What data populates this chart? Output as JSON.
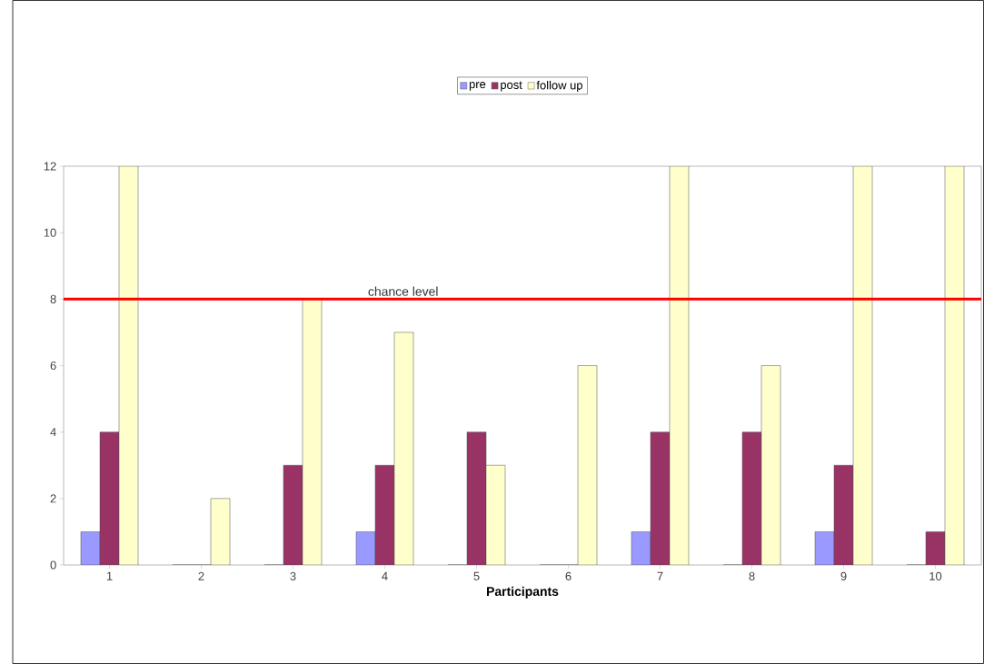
{
  "chart_data": {
    "type": "bar",
    "xlabel": "Participants",
    "categories": [
      "1",
      "2",
      "3",
      "4",
      "5",
      "6",
      "7",
      "8",
      "9",
      "10"
    ],
    "series": [
      {
        "name": "pre",
        "color": "#9999ff",
        "values": [
          1,
          0,
          0,
          1,
          0,
          0,
          1,
          0,
          1,
          0
        ]
      },
      {
        "name": "post",
        "color": "#993366",
        "values": [
          4,
          0,
          3,
          3,
          4,
          0,
          4,
          4,
          3,
          1
        ]
      },
      {
        "name": "follow up",
        "color": "#ffffcc",
        "values": [
          12,
          2,
          8,
          7,
          3,
          6,
          12,
          6,
          12,
          12
        ]
      }
    ],
    "ylim": [
      0,
      12
    ],
    "yticks": [
      0,
      2,
      4,
      6,
      8,
      10,
      12
    ],
    "legend": "top",
    "ref_lines": [
      {
        "axis": "y",
        "value": 8,
        "label": "chance level",
        "color": "#ff0000"
      }
    ]
  }
}
